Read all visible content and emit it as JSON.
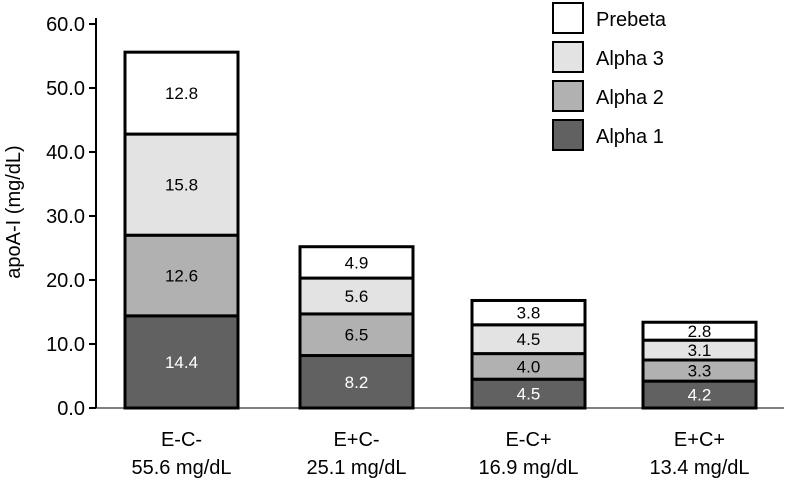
{
  "chart_data": {
    "type": "stacked-bar",
    "ylabel": "apoA-I (mg/dL)",
    "ylim": [
      0,
      60
    ],
    "yticks": [
      "0.0",
      "10.0",
      "20.0",
      "30.0",
      "40.0",
      "50.0",
      "60.0"
    ],
    "categories": [
      {
        "label": "E-C-",
        "total": "55.6 mg/dL"
      },
      {
        "label": "E+C-",
        "total": "25.1 mg/dL"
      },
      {
        "label": "E-C+",
        "total": "16.9 mg/dL"
      },
      {
        "label": "E+C+",
        "total": "13.4 mg/dL"
      }
    ],
    "series": [
      {
        "name": "Alpha 1",
        "color": "#616161",
        "values": [
          14.4,
          8.2,
          4.5,
          4.2
        ]
      },
      {
        "name": "Alpha 2",
        "color": "#b1b1b1",
        "values": [
          12.6,
          6.5,
          4.0,
          3.3
        ]
      },
      {
        "name": "Alpha 3",
        "color": "#e3e3e3",
        "values": [
          15.8,
          5.6,
          4.5,
          3.1
        ]
      },
      {
        "name": "Prebeta",
        "color": "#ffffff",
        "values": [
          12.8,
          4.9,
          3.8,
          2.8
        ]
      }
    ],
    "legend_order": [
      "Prebeta",
      "Alpha 3",
      "Alpha 2",
      "Alpha 1"
    ],
    "legend_position": "top-right",
    "grid": false
  }
}
